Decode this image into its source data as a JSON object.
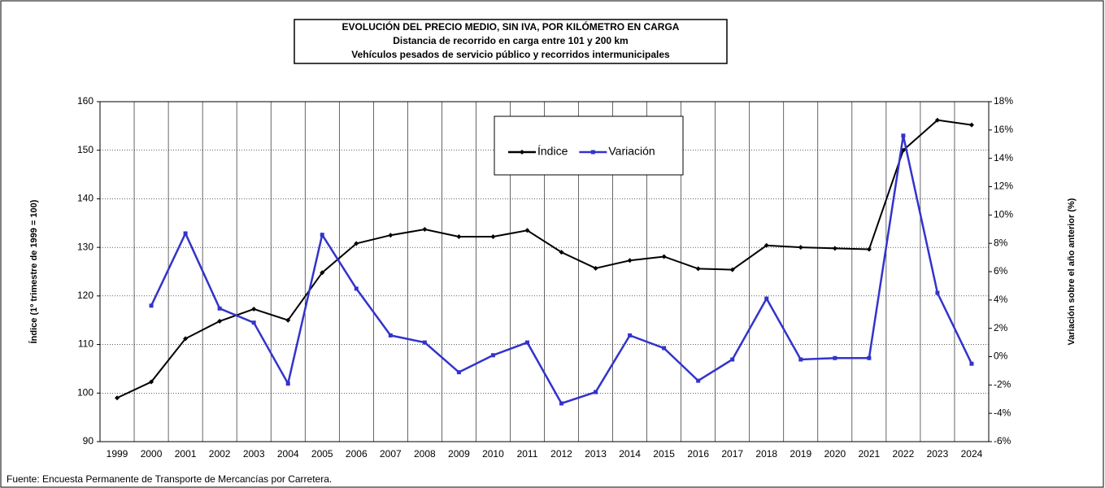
{
  "chart_data": {
    "type": "line",
    "title": "EVOLUCIÓN  DEL PRECIO MEDIO, SIN IVA, POR KILÓMETRO  EN CARGA",
    "subtitle": [
      "Distancia de recorrido en carga entre 101 y 200 km",
      "Vehículos pesados de servicio público  y recorridos intermunicipales"
    ],
    "ylabel": "Índice (1º trimestre de 1999 = 100)",
    "y2label": "Variación sobre el año anterior (%)",
    "source": "Fuente: Encuesta Permanente de Transporte de Mercancías por Carretera.",
    "categories": [
      "1999",
      "2000",
      "2001",
      "2002",
      "2003",
      "2004",
      "2005",
      "2006",
      "2007",
      "2008",
      "2009",
      "2010",
      "2011",
      "2012",
      "2013",
      "2014",
      "2015",
      "2016",
      "2017",
      "2018",
      "2019",
      "2020",
      "2021",
      "2022",
      "2023",
      "2024"
    ],
    "series": [
      {
        "name": "Índice",
        "color": "#000000",
        "marker": "diamond",
        "values": [
          99.0,
          102.3,
          111.2,
          114.8,
          117.3,
          115.0,
          124.8,
          130.8,
          132.5,
          133.7,
          132.2,
          132.2,
          133.5,
          129.0,
          125.7,
          127.3,
          128.1,
          125.6,
          125.4,
          130.4,
          130.0,
          129.8,
          129.6,
          150.0,
          156.2,
          155.2
        ]
      },
      {
        "name": "Variación",
        "color": "#3333cc",
        "marker": "square",
        "axis": "y2",
        "values": [
          null,
          3.6,
          8.7,
          3.4,
          2.4,
          -1.9,
          8.6,
          4.8,
          1.5,
          1.0,
          -1.1,
          0.1,
          1.0,
          -3.3,
          -2.5,
          1.5,
          0.6,
          -1.7,
          -0.2,
          4.1,
          -0.2,
          -0.1,
          -0.1,
          15.6,
          4.5,
          -0.5
        ]
      }
    ],
    "ylim": [
      90,
      160
    ],
    "yticks": [
      90,
      100,
      110,
      120,
      130,
      140,
      150,
      160
    ],
    "y2lim": [
      -6,
      18
    ],
    "y2ticks": [
      {
        "value": -6,
        "label": "-6%"
      },
      {
        "value": -4,
        "label": "-4%"
      },
      {
        "value": -2,
        "label": "-2%"
      },
      {
        "value": 0,
        "label": "0%"
      },
      {
        "value": 2,
        "label": "2%"
      },
      {
        "value": 4,
        "label": "4%"
      },
      {
        "value": 6,
        "label": "6%"
      },
      {
        "value": 8,
        "label": "8%"
      },
      {
        "value": 10,
        "label": "10%"
      },
      {
        "value": 12,
        "label": "12%"
      },
      {
        "value": 14,
        "label": "14%"
      },
      {
        "value": 16,
        "label": "16%"
      },
      {
        "value": 18,
        "label": "18%"
      }
    ],
    "grid": true
  }
}
